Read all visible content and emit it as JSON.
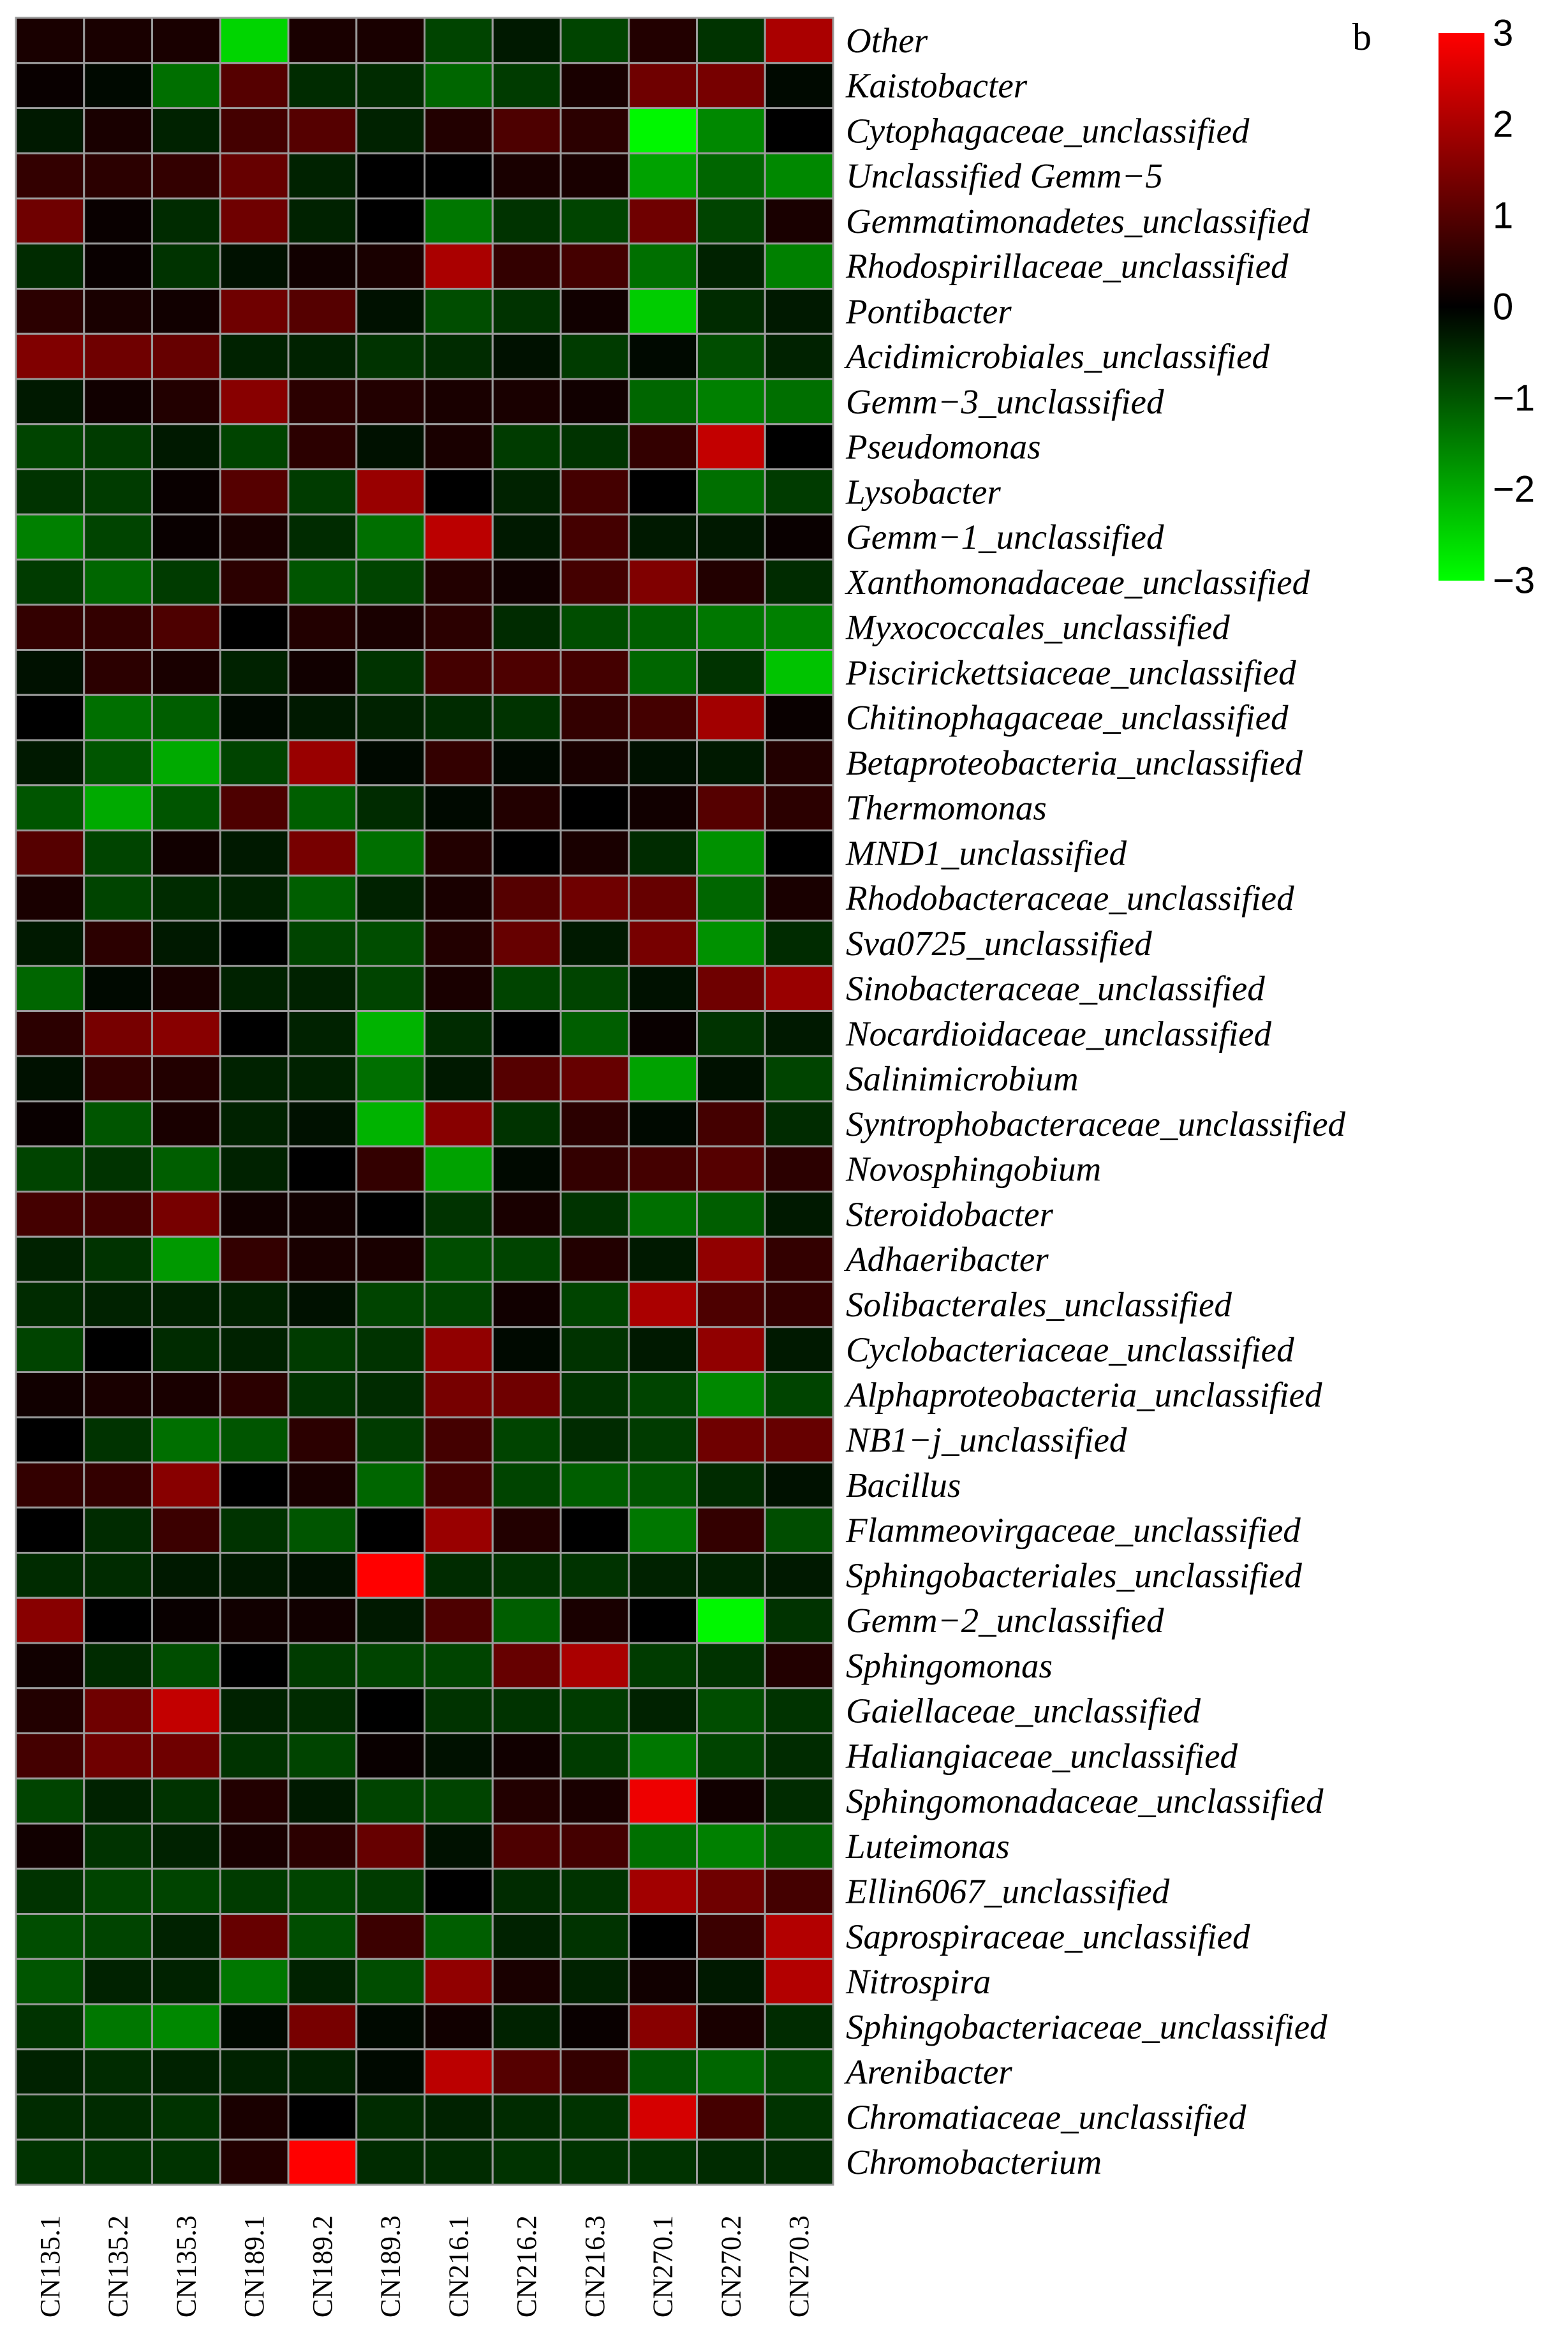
{
  "chart_data": {
    "type": "heatmap",
    "panel_label": "b",
    "columns": [
      "CN135.1",
      "CN135.2",
      "CN135.3",
      "CN189.1",
      "CN189.2",
      "CN189.3",
      "CN216.1",
      "CN216.2",
      "CN216.3",
      "CN270.1",
      "CN270.2",
      "CN270.3"
    ],
    "rows": [
      "Other",
      "Kaistobacter",
      "Cytophagaceae_unclassified",
      "Unclassified Gemm−5",
      "Gemmatimonadetes_unclassified",
      "Rhodospirillaceae_unclassified",
      "Pontibacter",
      "Acidimicrobiales_unclassified",
      "Gemm−3_unclassified",
      "Pseudomonas",
      "Lysobacter",
      "Gemm−1_unclassified",
      "Xanthomonadaceae_unclassified",
      "Myxococcales_unclassified",
      "Piscirickettsiaceae_unclassified",
      "Chitinophagaceae_unclassified",
      "Betaproteobacteria_unclassified",
      "Thermomonas",
      "MND1_unclassified",
      "Rhodobacteraceae_unclassified",
      "Sva0725_unclassified",
      "Sinobacteraceae_unclassified",
      "Nocardioidaceae_unclassified",
      "Salinimicrobium",
      "Syntrophobacteraceae_unclassified",
      "Novosphingobium",
      "Steroidobacter",
      "Adhaeribacter",
      "Solibacterales_unclassified",
      "Cyclobacteriaceae_unclassified",
      "Alphaproteobacteria_unclassified",
      "NB1−j_unclassified",
      "Bacillus",
      "Flammeovirgaceae_unclassified",
      "Sphingobacteriales_unclassified",
      "Gemm−2_unclassified",
      "Sphingomonas",
      "Gaiellaceae_unclassified",
      "Haliangiaceae_unclassified",
      "Sphingomonadaceae_unclassified",
      "Luteimonas",
      "Ellin6067_unclassified",
      "Saprospiraceae_unclassified",
      "Nitrospira",
      "Sphingobacteriaceae_unclassified",
      "Arenibacter",
      "Chromatiaceae_unclassified",
      "Chromobacterium"
    ],
    "values": [
      [
        0.3,
        0.3,
        0.3,
        -2.5,
        0.3,
        0.3,
        -0.8,
        -0.3,
        -0.8,
        0.4,
        -0.6,
        2.0
      ],
      [
        0.1,
        -0.1,
        -1.3,
        1.0,
        -0.5,
        -0.5,
        -1.2,
        -0.7,
        0.3,
        1.3,
        1.4,
        -0.1
      ],
      [
        -0.3,
        0.3,
        -0.4,
        0.8,
        1.0,
        -0.4,
        0.4,
        0.9,
        0.5,
        -2.9,
        -1.6,
        0.0
      ],
      [
        0.6,
        0.5,
        0.6,
        1.2,
        -0.4,
        0.0,
        0.0,
        0.3,
        0.3,
        -1.9,
        -1.2,
        -1.6
      ],
      [
        1.3,
        0.1,
        -0.5,
        1.3,
        -0.4,
        0.0,
        -1.4,
        -0.6,
        -0.8,
        1.3,
        -0.8,
        0.3
      ],
      [
        -0.5,
        0.1,
        -0.6,
        -0.2,
        0.2,
        0.3,
        2.0,
        0.6,
        0.8,
        -1.3,
        -0.4,
        -1.5
      ],
      [
        0.5,
        0.3,
        0.2,
        1.3,
        1.0,
        -0.2,
        -0.9,
        -0.6,
        0.2,
        -2.4,
        -0.5,
        -0.3
      ],
      [
        1.5,
        1.3,
        1.2,
        -0.4,
        -0.4,
        -0.6,
        -0.5,
        -0.2,
        -0.7,
        -0.1,
        -0.9,
        -0.4
      ],
      [
        -0.3,
        0.2,
        0.4,
        1.6,
        0.5,
        0.4,
        0.3,
        0.3,
        0.2,
        -1.2,
        -1.5,
        -1.3
      ],
      [
        -0.8,
        -0.7,
        -0.3,
        -0.8,
        0.5,
        -0.2,
        0.3,
        -0.7,
        -0.6,
        0.6,
        2.3,
        0.0
      ],
      [
        -0.6,
        -0.7,
        0.1,
        1.0,
        -0.7,
        1.8,
        0.0,
        -0.4,
        0.8,
        0.0,
        -1.3,
        -0.7
      ],
      [
        -1.5,
        -0.8,
        0.1,
        0.3,
        -0.5,
        -1.3,
        2.2,
        -0.3,
        0.8,
        -0.3,
        -0.3,
        0.1
      ],
      [
        -0.7,
        -1.2,
        -0.7,
        0.5,
        -1.0,
        -0.8,
        0.4,
        0.2,
        0.8,
        1.5,
        0.4,
        -0.5
      ],
      [
        0.6,
        0.6,
        0.9,
        0.0,
        0.4,
        0.3,
        0.5,
        -0.5,
        -0.9,
        -1.1,
        -1.4,
        -1.5
      ],
      [
        -0.2,
        0.5,
        0.3,
        -0.4,
        0.2,
        -0.6,
        0.8,
        0.9,
        0.8,
        -1.2,
        -0.6,
        -2.3
      ],
      [
        0.0,
        -1.3,
        -1.1,
        -0.1,
        -0.3,
        -0.4,
        -0.5,
        -0.6,
        0.6,
        0.8,
        1.9,
        0.1
      ],
      [
        -0.3,
        -1.0,
        -2.0,
        -0.8,
        1.8,
        -0.1,
        0.6,
        -0.1,
        0.3,
        -0.2,
        -0.3,
        0.4
      ],
      [
        -1.0,
        -2.0,
        -1.0,
        0.9,
        -1.1,
        -0.5,
        -0.1,
        0.4,
        0.0,
        0.2,
        1.0,
        0.5
      ],
      [
        1.0,
        -0.8,
        0.2,
        -0.3,
        1.4,
        -1.3,
        0.4,
        0.0,
        0.3,
        -0.5,
        -1.7,
        0.0
      ],
      [
        0.3,
        -0.8,
        -0.5,
        -0.4,
        -1.1,
        -0.4,
        0.3,
        1.0,
        1.3,
        1.2,
        -1.2,
        0.3
      ],
      [
        -0.3,
        0.5,
        -0.3,
        0.0,
        -0.8,
        -0.9,
        0.4,
        1.2,
        -0.3,
        1.4,
        -1.7,
        -0.5
      ],
      [
        -1.2,
        -0.1,
        0.3,
        -0.4,
        -0.4,
        -0.8,
        0.3,
        -0.8,
        -0.8,
        -0.2,
        1.3,
        1.8
      ],
      [
        0.5,
        1.4,
        1.6,
        0.0,
        -0.4,
        -2.1,
        -0.5,
        0.0,
        -1.1,
        0.1,
        -0.6,
        -0.3
      ],
      [
        -0.2,
        0.6,
        0.4,
        -0.4,
        -0.4,
        -1.3,
        -0.3,
        1.0,
        1.2,
        -1.9,
        -0.2,
        -0.8
      ],
      [
        0.1,
        -1.0,
        0.3,
        -0.4,
        -0.2,
        -2.1,
        1.6,
        -0.6,
        0.5,
        -0.1,
        0.8,
        -0.5
      ],
      [
        -0.8,
        -0.6,
        -1.1,
        -0.4,
        0.0,
        0.6,
        -1.9,
        -0.1,
        0.6,
        0.8,
        1.0,
        0.5
      ],
      [
        0.8,
        0.8,
        1.4,
        0.2,
        0.2,
        0.0,
        -0.6,
        0.3,
        -0.6,
        -1.3,
        -1.1,
        -0.3
      ],
      [
        -0.4,
        -0.6,
        -1.8,
        0.6,
        0.3,
        0.3,
        -0.9,
        -0.8,
        0.4,
        -0.3,
        1.7,
        0.6
      ],
      [
        -0.5,
        -0.4,
        -0.4,
        -0.4,
        -0.2,
        -0.8,
        -0.8,
        0.2,
        -0.8,
        2.0,
        0.9,
        0.6
      ],
      [
        -0.8,
        0.0,
        -0.5,
        -0.4,
        -0.7,
        -0.6,
        1.7,
        -0.1,
        -0.6,
        -0.3,
        1.7,
        -0.3
      ],
      [
        0.2,
        0.3,
        0.3,
        0.5,
        -0.6,
        -0.5,
        1.4,
        1.3,
        -0.6,
        -0.8,
        -1.6,
        -0.8
      ],
      [
        0.0,
        -0.6,
        -1.3,
        -1.0,
        0.5,
        -0.7,
        0.8,
        -0.8,
        -0.5,
        -0.7,
        1.3,
        1.2
      ],
      [
        0.6,
        0.6,
        1.6,
        0.0,
        0.3,
        -1.2,
        0.8,
        -0.8,
        -1.1,
        -1.0,
        -0.5,
        -0.2
      ],
      [
        0.0,
        -0.5,
        0.7,
        -0.6,
        -1.0,
        0.0,
        1.8,
        0.4,
        0.0,
        -1.4,
        0.6,
        -0.9
      ],
      [
        -0.5,
        -0.5,
        -0.3,
        -0.3,
        -0.2,
        3.0,
        -0.5,
        -0.6,
        -0.6,
        -0.4,
        -0.4,
        -0.3
      ],
      [
        1.6,
        0.0,
        0.1,
        0.2,
        0.2,
        -0.3,
        0.9,
        -1.1,
        0.3,
        0.0,
        -2.9,
        -0.6
      ],
      [
        0.2,
        -0.5,
        -0.9,
        0.0,
        -0.7,
        -0.8,
        -0.8,
        1.2,
        2.0,
        -0.7,
        -0.6,
        0.4
      ],
      [
        0.4,
        1.3,
        2.3,
        -0.4,
        -0.5,
        0.0,
        -0.6,
        -0.6,
        -0.7,
        -0.4,
        -0.9,
        -0.6
      ],
      [
        0.8,
        1.3,
        1.3,
        -0.6,
        -0.8,
        0.1,
        -0.2,
        0.2,
        -0.7,
        -1.4,
        -0.8,
        -0.5
      ],
      [
        -0.8,
        -0.4,
        -0.6,
        0.4,
        -0.3,
        -0.8,
        -0.8,
        0.4,
        0.3,
        2.8,
        0.2,
        -0.5
      ],
      [
        0.2,
        -0.6,
        -0.4,
        0.3,
        0.5,
        1.2,
        -0.2,
        0.9,
        0.8,
        -1.3,
        -1.5,
        -1.1
      ],
      [
        -0.6,
        -0.8,
        -0.8,
        -0.7,
        -0.8,
        -0.7,
        0.0,
        -0.5,
        -0.6,
        1.9,
        1.3,
        0.8
      ],
      [
        -0.9,
        -0.8,
        -0.4,
        1.2,
        -0.9,
        0.7,
        -1.1,
        -0.4,
        -0.6,
        0.0,
        0.7,
        2.1
      ],
      [
        -1.0,
        -0.4,
        -0.4,
        -1.4,
        -0.4,
        -0.9,
        1.7,
        0.3,
        -0.4,
        0.2,
        -0.3,
        2.1
      ],
      [
        -0.6,
        -1.4,
        -1.6,
        -0.1,
        1.4,
        -0.1,
        0.2,
        -0.4,
        0.1,
        1.6,
        0.3,
        -0.5
      ],
      [
        -0.4,
        -0.5,
        -0.4,
        -0.4,
        -0.4,
        -0.1,
        2.2,
        1.0,
        0.6,
        -1.0,
        -1.2,
        -0.8
      ],
      [
        -0.5,
        -0.5,
        -0.6,
        0.3,
        0.0,
        -0.5,
        -0.4,
        -0.5,
        -0.6,
        2.5,
        0.8,
        -0.6
      ],
      [
        -0.6,
        -0.6,
        -0.6,
        0.4,
        3.0,
        -0.5,
        -0.5,
        -0.6,
        -0.6,
        -0.6,
        -0.5,
        -0.5
      ]
    ],
    "legend": {
      "min": -3,
      "max": 3,
      "ticks": [
        "3",
        "2",
        "1",
        "0",
        "−1",
        "−2",
        "−3"
      ],
      "tick_values": [
        3,
        2,
        1,
        0,
        -1,
        -2,
        -3
      ],
      "placement": "top-right"
    },
    "colors": {
      "low": "#00ff00",
      "mid": "#000000",
      "high": "#ff0000",
      "grid": "#9a9a9a"
    }
  }
}
